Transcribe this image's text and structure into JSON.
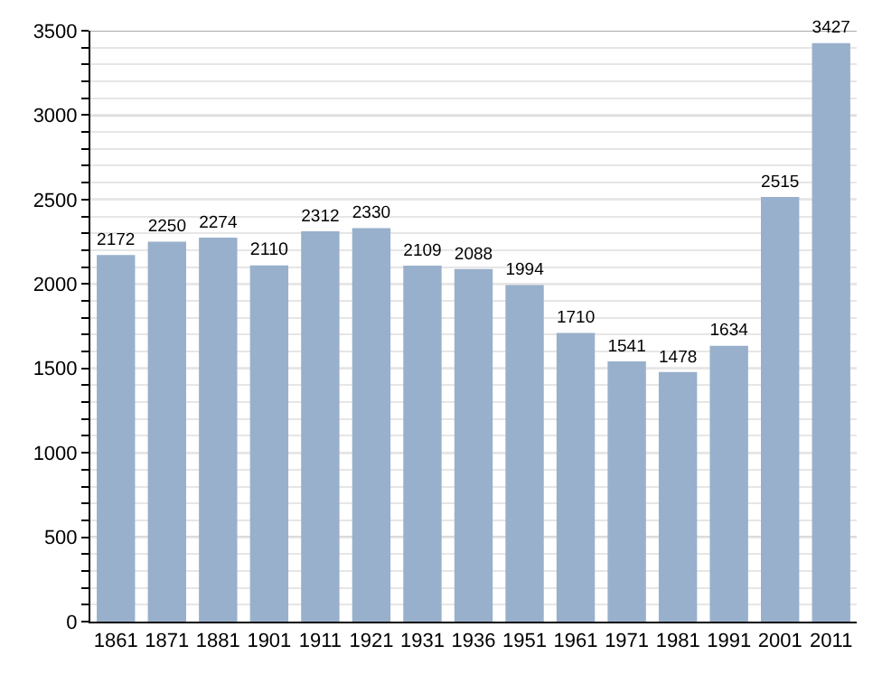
{
  "chart_data": {
    "type": "bar",
    "categories": [
      "1861",
      "1871",
      "1881",
      "1901",
      "1911",
      "1921",
      "1931",
      "1936",
      "1951",
      "1961",
      "1971",
      "1981",
      "1991",
      "2001",
      "2011"
    ],
    "values": [
      2172,
      2250,
      2274,
      2110,
      2312,
      2330,
      2109,
      2088,
      1994,
      1710,
      1541,
      1478,
      1634,
      2515,
      3427
    ],
    "color": "#98b0cb",
    "data_labels": true,
    "grid": "y",
    "ylim": [
      0,
      3500
    ],
    "yticks": [
      0,
      {
        "value": 100,
        "label": null
      },
      {
        "value": 200,
        "label": null
      },
      {
        "value": 300,
        "label": null
      },
      {
        "value": 400,
        "label": null
      },
      500,
      {
        "value": 600,
        "label": null
      },
      {
        "value": 700,
        "label": null
      },
      {
        "value": 800,
        "label": null
      },
      {
        "value": 900,
        "label": null
      },
      1000,
      {
        "value": 1100,
        "label": null
      },
      {
        "value": 1200,
        "label": null
      },
      {
        "value": 1300,
        "label": null
      },
      {
        "value": 1400,
        "label": null
      },
      1500,
      {
        "value": 1600,
        "label": null
      },
      {
        "value": 1700,
        "label": null
      },
      {
        "value": 1800,
        "label": null
      },
      {
        "value": 1900,
        "label": null
      },
      2000,
      {
        "value": 2100,
        "label": null
      },
      {
        "value": 2200,
        "label": null
      },
      {
        "value": 2300,
        "label": null
      },
      {
        "value": 2400,
        "label": null
      },
      2500,
      {
        "value": 2600,
        "label": null
      },
      {
        "value": 2700,
        "label": null
      },
      {
        "value": 2800,
        "label": null
      },
      {
        "value": 2900,
        "label": null
      },
      3000,
      {
        "value": 3100,
        "label": null
      },
      {
        "value": 3200,
        "label": null
      },
      {
        "value": 3300,
        "label": null
      },
      {
        "value": 3400,
        "label": null
      },
      3500
    ]
  }
}
